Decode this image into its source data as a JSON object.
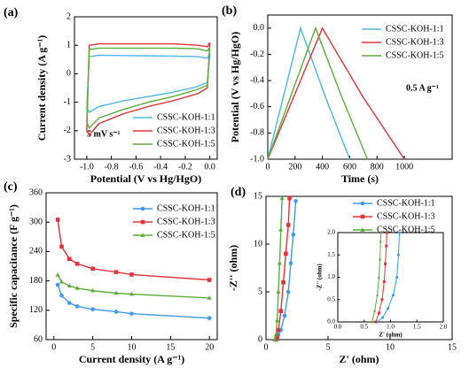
{
  "chart_data": [
    {
      "type": "line",
      "panel_label": "(a)",
      "xlabel": "Potential (V vs Hg/HgO)",
      "ylabel": "Current density (A g⁻¹)",
      "annotation": "5 mV s⁻¹",
      "xlim": [
        -1.1,
        0.06
      ],
      "ylim": [
        -3,
        2
      ],
      "xticks": [
        {
          "value": -1.0,
          "label": "-1.0"
        },
        -0.8,
        -0.6,
        -0.4,
        -0.2,
        {
          "value": 0.0,
          "label": "0.0"
        }
      ],
      "yticks": [
        -3,
        -2,
        -1,
        0,
        1,
        2
      ],
      "x": [
        0,
        -0.02,
        -0.1,
        -0.3,
        -0.5,
        -0.7,
        -0.9,
        -0.98,
        -1.0,
        -0.98,
        -0.9,
        -0.7,
        -0.5,
        -0.3,
        -0.1,
        -0.02,
        0
      ],
      "series": [
        {
          "name": "CSSC-KOH-1:1",
          "color": "#4fb3e8",
          "values": [
            0.7,
            0.55,
            0.6,
            0.62,
            0.63,
            0.64,
            0.65,
            0.6,
            -1.2,
            -1.35,
            -1.15,
            -0.95,
            -0.8,
            -0.65,
            -0.45,
            -0.3,
            0.7
          ]
        },
        {
          "name": "CSSC-KOH-1:3",
          "color": "#e0333c",
          "values": [
            1.1,
            0.95,
            1.0,
            1.05,
            1.05,
            1.05,
            1.05,
            1.0,
            -2.0,
            -2.15,
            -1.75,
            -1.4,
            -1.15,
            -0.95,
            -0.7,
            -0.5,
            1.1
          ]
        },
        {
          "name": "CSSC-KOH-1:5",
          "color": "#5aae3a",
          "values": [
            0.95,
            0.8,
            0.88,
            0.9,
            0.9,
            0.9,
            0.9,
            0.85,
            -1.7,
            -1.9,
            -1.55,
            -1.25,
            -1.0,
            -0.8,
            -0.55,
            -0.4,
            0.95
          ]
        }
      ]
    },
    {
      "type": "line",
      "panel_label": "(b)",
      "xlabel": "Time (s)",
      "ylabel": "Potential (V vs Hg/HgO)",
      "annotation": "0.5 A g⁻¹",
      "xlim": [
        0,
        1350
      ],
      "ylim": [
        -1.0,
        0.1
      ],
      "xticks": [
        0,
        200,
        400,
        600,
        800,
        1000
      ],
      "yticks": [
        {
          "value": -1.0,
          "label": "-1.0"
        },
        -0.8,
        -0.6,
        -0.4,
        -0.2,
        {
          "value": 0.0,
          "label": "0.0"
        }
      ],
      "series": [
        {
          "name": "CSSC-KOH-1:1",
          "color": "#4fb3e8",
          "x": [
            0,
            120,
            240,
            420,
            600
          ],
          "values": [
            -1.0,
            -0.5,
            0.0,
            -0.52,
            -1.0
          ]
        },
        {
          "name": "CSSC-KOH-1:3",
          "color": "#e0333c",
          "x": [
            0,
            200,
            400,
            700,
            1000
          ],
          "values": [
            -1.0,
            -0.5,
            0.0,
            -0.53,
            -1.0
          ]
        },
        {
          "name": "CSSC-KOH-1:5",
          "color": "#5aae3a",
          "x": [
            0,
            175,
            350,
            540,
            730
          ],
          "values": [
            -1.0,
            -0.5,
            0.0,
            -0.52,
            -1.0
          ]
        }
      ]
    },
    {
      "type": "line",
      "panel_label": "(c)",
      "xlabel": "Current density (A g⁻¹)",
      "ylabel": "Specific capacitance (F g⁻¹)",
      "xlim": [
        -1,
        21
      ],
      "ylim": [
        60,
        360
      ],
      "xticks": [
        0,
        5,
        10,
        15,
        20
      ],
      "yticks": [
        60,
        120,
        180,
        240,
        300,
        360
      ],
      "x": [
        0.5,
        1,
        2,
        3,
        5,
        8,
        10,
        20
      ],
      "series": [
        {
          "name": "CSSC-KOH-1:1",
          "color": "#3d9be9",
          "marker": "circle",
          "values": [
            172,
            150,
            135,
            128,
            122,
            117,
            113,
            104
          ]
        },
        {
          "name": "CSSC-KOH-1:3",
          "color": "#e0333c",
          "marker": "square",
          "values": [
            305,
            250,
            225,
            215,
            205,
            198,
            193,
            182
          ]
        },
        {
          "name": "CSSC-KOH-1:5",
          "color": "#5aae3a",
          "marker": "triangle",
          "values": [
            192,
            178,
            170,
            165,
            160,
            155,
            153,
            145
          ]
        }
      ]
    },
    {
      "type": "line",
      "panel_label": "(d)",
      "xlabel": "Z' (ohm)",
      "ylabel": "-Z'' (ohm)",
      "xlim": [
        0,
        15
      ],
      "ylim": [
        0,
        15
      ],
      "xticks": [
        0,
        5,
        10,
        15
      ],
      "yticks": [
        0,
        5,
        10,
        15
      ],
      "series": [
        {
          "name": "CSSC-KOH-1:1",
          "color": "#3d9be9",
          "marker": "circle",
          "x": [
            0.8,
            0.9,
            1.0,
            1.2,
            1.5,
            1.8,
            2.0,
            2.2,
            2.4
          ],
          "values": [
            0,
            0.2,
            0.5,
            1,
            2.5,
            5,
            8,
            11,
            14.5
          ]
        },
        {
          "name": "CSSC-KOH-1:3",
          "color": "#e0333c",
          "marker": "square",
          "x": [
            0.8,
            0.9,
            1.0,
            1.2,
            1.4,
            1.6,
            1.8,
            1.9
          ],
          "values": [
            0,
            0.3,
            1,
            3,
            6,
            9,
            12,
            14.8
          ]
        },
        {
          "name": "CSSC-KOH-1:5",
          "color": "#5aae3a",
          "marker": "triangle",
          "x": [
            0.7,
            0.8,
            0.9,
            1.0,
            1.1,
            1.2,
            1.3
          ],
          "values": [
            0,
            0.5,
            2,
            5,
            8,
            11.5,
            14.8
          ]
        }
      ]
    },
    {
      "type": "line",
      "xlabel": "Z' (ohm)",
      "ylabel": "-Z'' (ohm)",
      "xlim": [
        0,
        2
      ],
      "ylim": [
        0,
        2
      ],
      "xticks": [
        {
          "value": 0,
          "label": "0.0"
        },
        0.5,
        {
          "value": 1,
          "label": "1.0"
        },
        1.5,
        {
          "value": 2,
          "label": "2.0"
        }
      ],
      "yticks": [
        {
          "value": 0,
          "label": "0.0"
        },
        0.5,
        {
          "value": 1,
          "label": "1.0"
        },
        1.5,
        {
          "value": 2,
          "label": "2.0"
        }
      ],
      "series": [
        {
          "color": "#3d9be9",
          "marker": "circle",
          "x": [
            0.75,
            0.85,
            0.95,
            1.05,
            1.12,
            1.15,
            1.17
          ],
          "values": [
            0,
            0.1,
            0.3,
            0.6,
            1.0,
            1.5,
            2.0
          ]
        },
        {
          "color": "#e0333c",
          "marker": "square",
          "x": [
            0.72,
            0.78,
            0.84,
            0.88,
            0.9,
            0.92,
            0.93
          ],
          "values": [
            0,
            0.2,
            0.5,
            0.9,
            1.3,
            1.7,
            2.0
          ]
        },
        {
          "color": "#5aae3a",
          "marker": "triangle",
          "x": [
            0.65,
            0.7,
            0.75,
            0.78,
            0.8,
            0.81,
            0.82
          ],
          "values": [
            0,
            0.25,
            0.6,
            1.0,
            1.4,
            1.8,
            2.0
          ]
        }
      ]
    }
  ]
}
